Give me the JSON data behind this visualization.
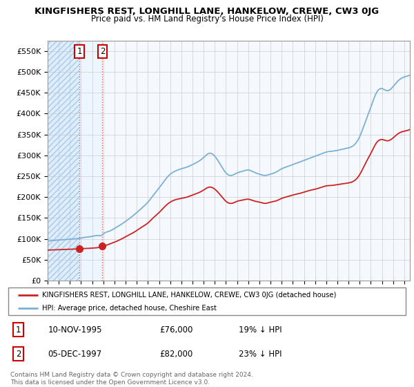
{
  "title": "KINGFISHERS REST, LONGHILL LANE, HANKELOW, CREWE, CW3 0JG",
  "subtitle": "Price paid vs. HM Land Registry's House Price Index (HPI)",
  "ylim": [
    0,
    575000
  ],
  "yticks": [
    0,
    50000,
    100000,
    150000,
    200000,
    250000,
    300000,
    350000,
    400000,
    450000,
    500000,
    550000
  ],
  "ytick_labels": [
    "£0",
    "£50K",
    "£100K",
    "£150K",
    "£200K",
    "£250K",
    "£300K",
    "£350K",
    "£400K",
    "£450K",
    "£500K",
    "£550K"
  ],
  "hpi_color": "#7ab0d8",
  "price_color": "#cc2222",
  "marker_color": "#cc2222",
  "vline_color": "#e06060",
  "hatch_color": "#c8d8e8",
  "bg_hatched": "#ddeeff",
  "bg_between": "#e8f2fc",
  "bg_main": "#f4f8fc",
  "grid_color": "#cccccc",
  "transactions": [
    {
      "date_num": 1995.86,
      "price": 76000,
      "label": "1"
    },
    {
      "date_num": 1997.92,
      "price": 82000,
      "label": "2"
    }
  ],
  "transaction_table": [
    {
      "num": "1",
      "date": "10-NOV-1995",
      "price": "£76,000",
      "note": "19% ↓ HPI"
    },
    {
      "num": "2",
      "date": "05-DEC-1997",
      "price": "£82,000",
      "note": "23% ↓ HPI"
    }
  ],
  "legend_entries": [
    "KINGFISHERS REST, LONGHILL LANE, HANKELOW, CREWE, CW3 0JG (detached house)",
    "HPI: Average price, detached house, Cheshire East"
  ],
  "footer": "Contains HM Land Registry data © Crown copyright and database right 2024.\nThis data is licensed under the Open Government Licence v3.0.",
  "xmin": 1993.0,
  "xmax": 2025.5,
  "hpi_data_x": [
    1993.0,
    1993.5,
    1994.0,
    1994.5,
    1995.0,
    1995.5,
    1995.86,
    1996.0,
    1996.5,
    1997.0,
    1997.5,
    1997.92,
    1998.0,
    1998.5,
    1999.0,
    1999.5,
    2000.0,
    2000.5,
    2001.0,
    2001.5,
    2002.0,
    2002.5,
    2003.0,
    2003.5,
    2004.0,
    2004.5,
    2005.0,
    2005.5,
    2006.0,
    2006.5,
    2007.0,
    2007.5,
    2008.0,
    2008.5,
    2009.0,
    2009.5,
    2010.0,
    2010.5,
    2011.0,
    2011.5,
    2012.0,
    2012.5,
    2013.0,
    2013.5,
    2014.0,
    2014.5,
    2015.0,
    2015.5,
    2016.0,
    2016.5,
    2017.0,
    2017.5,
    2018.0,
    2018.5,
    2019.0,
    2019.5,
    2020.0,
    2020.5,
    2021.0,
    2021.5,
    2022.0,
    2022.5,
    2023.0,
    2023.5,
    2024.0,
    2024.5,
    2025.0,
    2025.5
  ],
  "hpi_data_y": [
    95000,
    96000,
    97000,
    98000,
    99000,
    100000,
    101000,
    102000,
    104000,
    106000,
    108000,
    110000,
    112000,
    118000,
    125000,
    133000,
    142000,
    152000,
    163000,
    175000,
    188000,
    205000,
    222000,
    240000,
    255000,
    263000,
    268000,
    272000,
    278000,
    285000,
    295000,
    305000,
    298000,
    278000,
    258000,
    252000,
    258000,
    262000,
    265000,
    260000,
    255000,
    252000,
    255000,
    260000,
    268000,
    273000,
    278000,
    283000,
    288000,
    293000,
    298000,
    303000,
    308000,
    310000,
    312000,
    315000,
    318000,
    325000,
    345000,
    380000,
    415000,
    450000,
    460000,
    455000,
    465000,
    480000,
    488000,
    492000
  ],
  "price_data_x": [
    1993.0,
    1993.5,
    1994.0,
    1994.5,
    1995.0,
    1995.5,
    1995.86,
    1996.0,
    1996.5,
    1997.0,
    1997.5,
    1997.92,
    1998.0,
    1998.5,
    1999.0,
    1999.5,
    2000.0,
    2000.5,
    2001.0,
    2001.5,
    2002.0,
    2002.5,
    2003.0,
    2003.5,
    2004.0,
    2004.5,
    2005.0,
    2005.5,
    2006.0,
    2006.5,
    2007.0,
    2007.5,
    2008.0,
    2008.5,
    2009.0,
    2009.5,
    2010.0,
    2010.5,
    2011.0,
    2011.5,
    2012.0,
    2012.5,
    2013.0,
    2013.5,
    2014.0,
    2014.5,
    2015.0,
    2015.5,
    2016.0,
    2016.5,
    2017.0,
    2017.5,
    2018.0,
    2018.5,
    2019.0,
    2019.5,
    2020.0,
    2020.5,
    2021.0,
    2021.5,
    2022.0,
    2022.5,
    2023.0,
    2023.5,
    2024.0,
    2024.5,
    2025.0,
    2025.5
  ],
  "price_data_y": [
    73000,
    73500,
    74000,
    74500,
    75000,
    75500,
    76000,
    76500,
    77000,
    78000,
    79000,
    82000,
    82500,
    87000,
    92000,
    98000,
    105000,
    112000,
    120000,
    129000,
    138000,
    151000,
    163000,
    177000,
    188000,
    194000,
    197000,
    200000,
    205000,
    210000,
    217000,
    224000,
    219000,
    205000,
    190000,
    185000,
    190000,
    193000,
    195000,
    191000,
    188000,
    185000,
    188000,
    191000,
    197000,
    201000,
    205000,
    208000,
    212000,
    216000,
    219000,
    223000,
    227000,
    228000,
    230000,
    232000,
    234000,
    239000,
    254000,
    280000,
    305000,
    330000,
    338000,
    335000,
    342000,
    353000,
    358000,
    362000
  ]
}
